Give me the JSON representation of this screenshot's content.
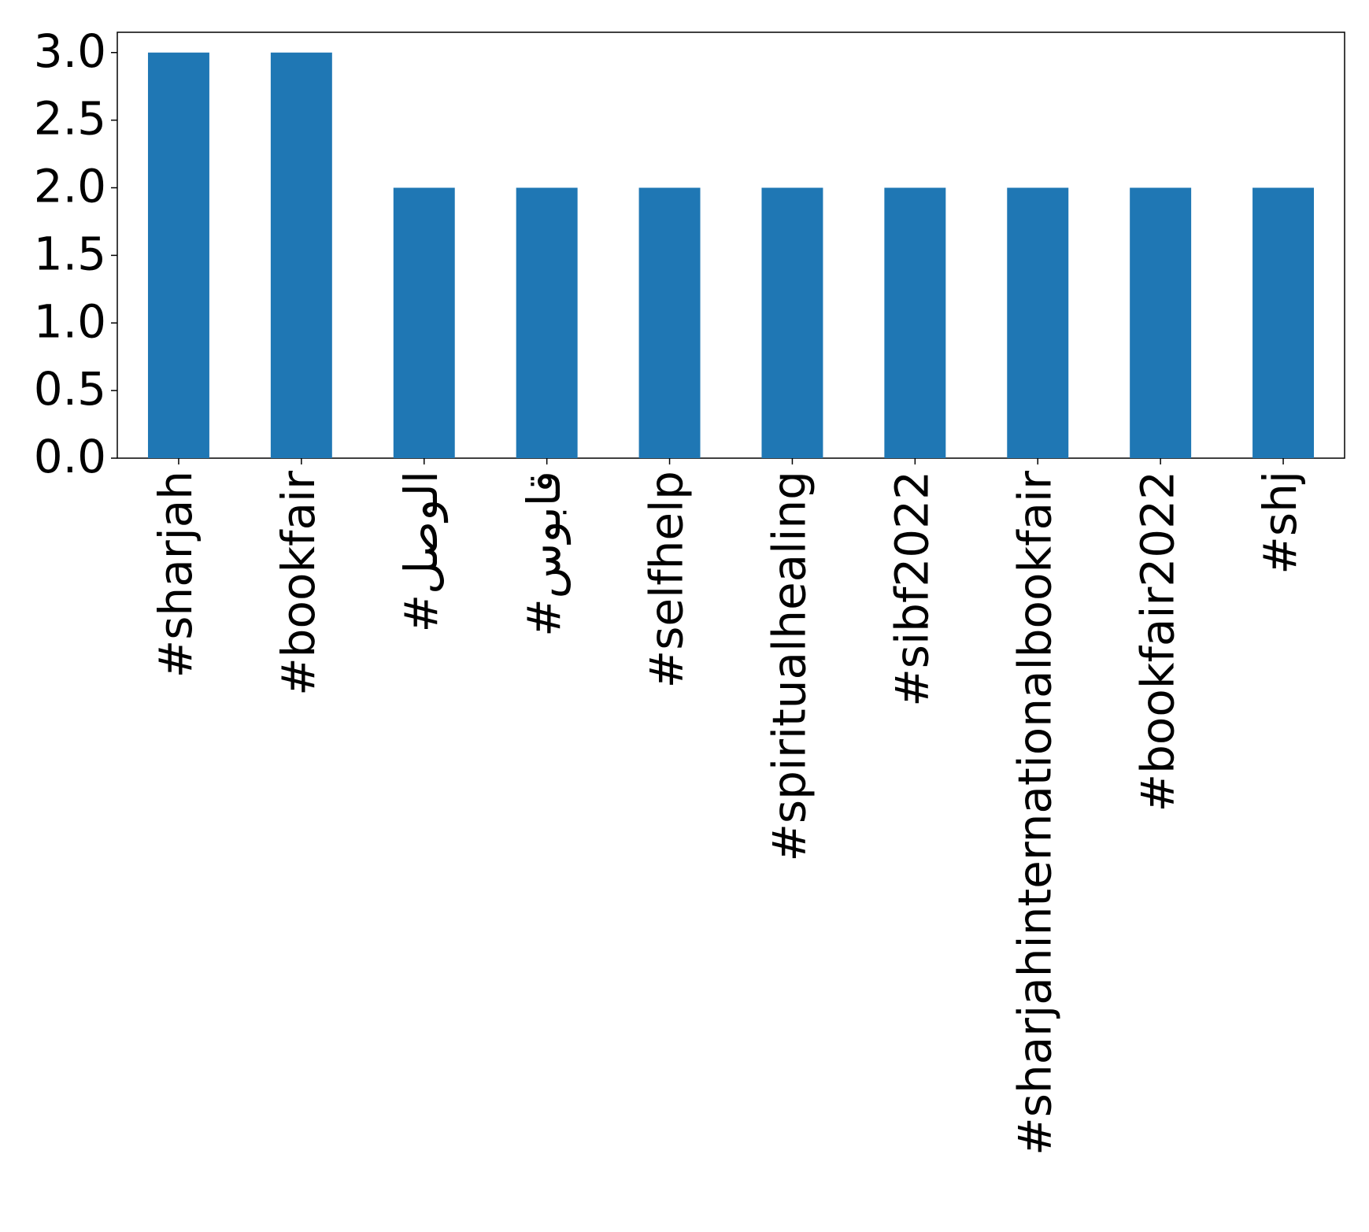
{
  "chart_data": {
    "type": "bar",
    "categories": [
      "#sharjah",
      "#bookfair",
      "#الوصل",
      "#قابوس",
      "#selfhelp",
      "#spiritualhealing",
      "#sibf2022",
      "#sharjahinternationalbookfair",
      "#bookfair2022",
      "#shj"
    ],
    "values": [
      3,
      3,
      2,
      2,
      2,
      2,
      2,
      2,
      2,
      2
    ],
    "color": "#1f77b4",
    "ylim": [
      0,
      3.15
    ],
    "yticks": [
      {
        "value": 0,
        "label": "0.0"
      },
      0.5,
      {
        "value": 1,
        "label": "1.0"
      },
      1.5,
      {
        "value": 2,
        "label": "2.0"
      },
      2.5,
      {
        "value": 3,
        "label": "3.0"
      }
    ],
    "grid": false
  }
}
